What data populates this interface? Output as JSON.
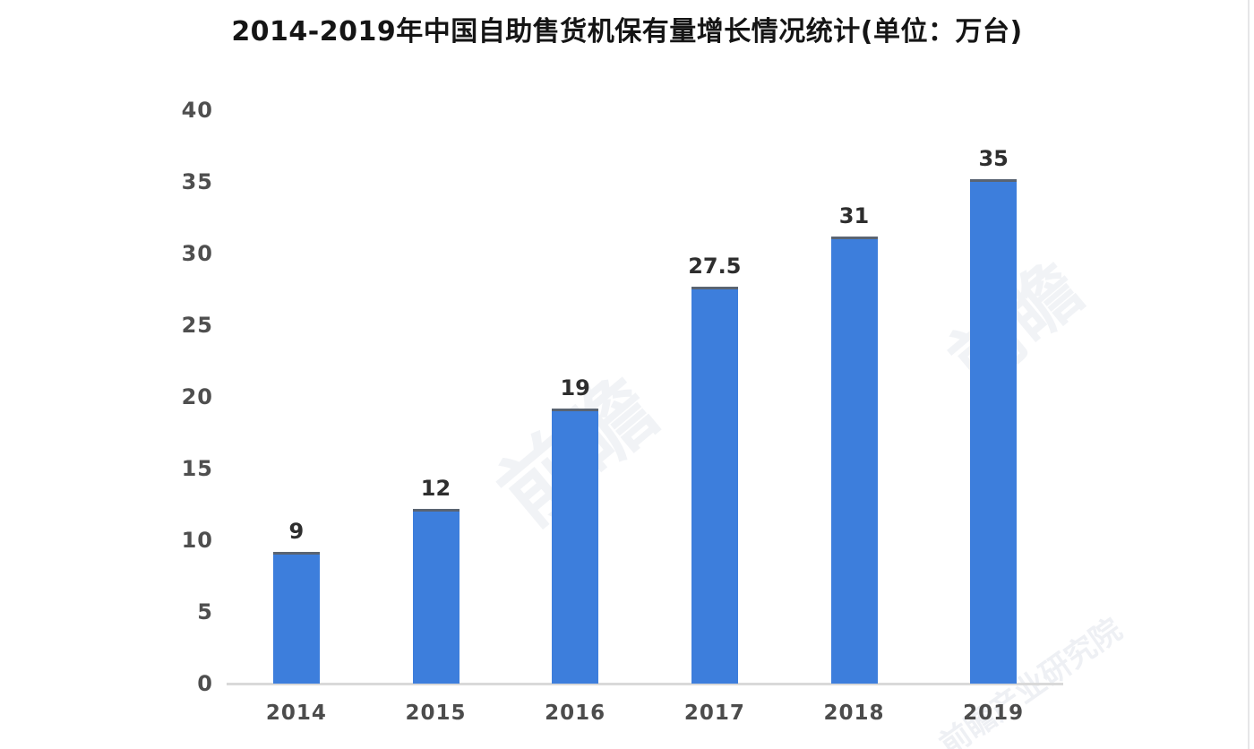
{
  "chart_data": {
    "type": "bar",
    "title": "2014-2019年中国自助售货机保有量增长情况统计(单位：万台)",
    "categories": [
      "2014",
      "2015",
      "2016",
      "2017",
      "2018",
      "2019"
    ],
    "values": [
      9,
      12,
      19,
      27.5,
      31,
      35
    ],
    "value_labels": [
      "9",
      "12",
      "19",
      "27.5",
      "31",
      "35"
    ],
    "xlabel": "",
    "ylabel": "",
    "ylim": [
      0,
      40
    ],
    "yticks": [
      0,
      5,
      10,
      15,
      20,
      25,
      30,
      35,
      40
    ],
    "grid": false,
    "legend": "none",
    "bar_color": "#3d7edc",
    "bar_top_edge_color": "#5a6472",
    "axis_line_color": "#d9d9d9",
    "value_label_color": "#2e2e2e",
    "tick_label_color": "#4f4f4f"
  },
  "watermarks": [
    {
      "text": "前瞻"
    },
    {
      "text": "前瞻"
    },
    {
      "text": "前瞻产业研究院"
    }
  ]
}
